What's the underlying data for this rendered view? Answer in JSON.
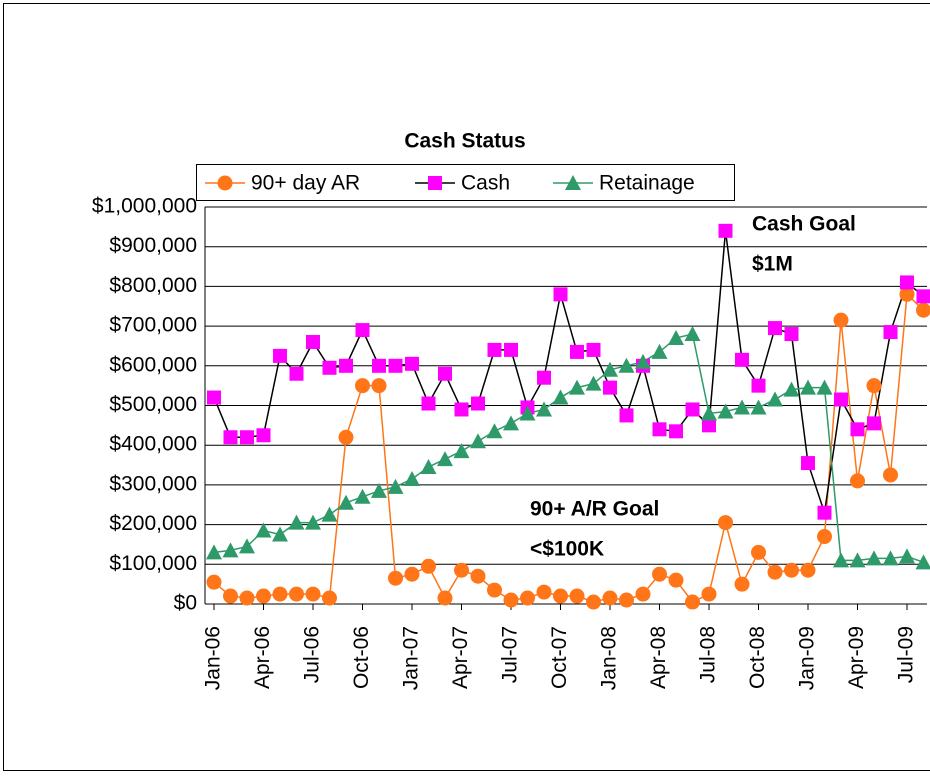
{
  "chart_data": {
    "type": "line",
    "title": "Cash Status",
    "categories": [
      "Jan-06",
      null,
      null,
      "Apr-06",
      null,
      null,
      "Jul-06",
      null,
      null,
      "Oct-06",
      null,
      null,
      "Jan-07",
      null,
      null,
      "Apr-07",
      null,
      null,
      "Jul-07",
      null,
      null,
      "Oct-07",
      null,
      null,
      "Jan-08",
      null,
      null,
      "Apr-08",
      null,
      null,
      "Jul-08",
      null,
      null,
      "Oct-08",
      null,
      null,
      "Jan-09",
      null,
      null,
      "Apr-09",
      null,
      null,
      "Jul-09",
      null
    ],
    "series": [
      {
        "name": "90+ day AR",
        "color": "#ff7518",
        "line_color": "#ff7518",
        "marker": "circle",
        "values": [
          55000,
          20000,
          15000,
          20000,
          25000,
          25000,
          25000,
          15000,
          420000,
          550000,
          550000,
          65000,
          75000,
          95000,
          15000,
          85000,
          70000,
          35000,
          10000,
          15000,
          30000,
          20000,
          20000,
          5000,
          15000,
          10000,
          25000,
          75000,
          60000,
          5000,
          25000,
          205000,
          50000,
          130000,
          80000,
          85000,
          85000,
          170000,
          715000,
          310000,
          550000,
          325000,
          780000,
          740000
        ]
      },
      {
        "name": "Cash",
        "color": "#ff00ff",
        "line_color": "#000000",
        "marker": "square",
        "values": [
          520000,
          420000,
          420000,
          425000,
          625000,
          580000,
          660000,
          595000,
          600000,
          690000,
          600000,
          600000,
          605000,
          505000,
          580000,
          490000,
          505000,
          640000,
          640000,
          495000,
          570000,
          780000,
          635000,
          640000,
          545000,
          475000,
          600000,
          440000,
          435000,
          490000,
          450000,
          940000,
          615000,
          550000,
          695000,
          680000,
          355000,
          230000,
          515000,
          440000,
          455000,
          685000,
          810000,
          775000
        ]
      },
      {
        "name": "Retainage",
        "color": "#2e9a6a",
        "line_color": "#2e9a6a",
        "marker": "triangle",
        "values": [
          130000,
          135000,
          145000,
          185000,
          175000,
          205000,
          205000,
          225000,
          255000,
          270000,
          285000,
          295000,
          315000,
          345000,
          365000,
          385000,
          410000,
          435000,
          455000,
          480000,
          490000,
          520000,
          545000,
          555000,
          590000,
          600000,
          610000,
          635000,
          670000,
          680000,
          480000,
          485000,
          495000,
          495000,
          515000,
          540000,
          545000,
          545000,
          110000,
          110000,
          115000,
          115000,
          120000,
          105000
        ]
      }
    ],
    "ylim": [
      0,
      1000000
    ],
    "yticks": [
      {
        "value": 0,
        "label": "$0"
      },
      {
        "value": 100000,
        "label": "$100,000"
      },
      {
        "value": 200000,
        "label": "$200,000"
      },
      {
        "value": 300000,
        "label": "$300,000"
      },
      {
        "value": 400000,
        "label": "$400,000"
      },
      {
        "value": 500000,
        "label": "$500,000"
      },
      {
        "value": 600000,
        "label": "$600,000"
      },
      {
        "value": 700000,
        "label": "$700,000"
      },
      {
        "value": 800000,
        "label": "$800,000"
      },
      {
        "value": 900000,
        "label": "$900,000"
      },
      {
        "value": 1000000,
        "label": "$1,000,000"
      }
    ],
    "grid": true,
    "annotations": [
      [
        "Cash Goal",
        "$1M"
      ],
      [
        "90+ A/R Goal",
        "<$100K"
      ]
    ]
  }
}
